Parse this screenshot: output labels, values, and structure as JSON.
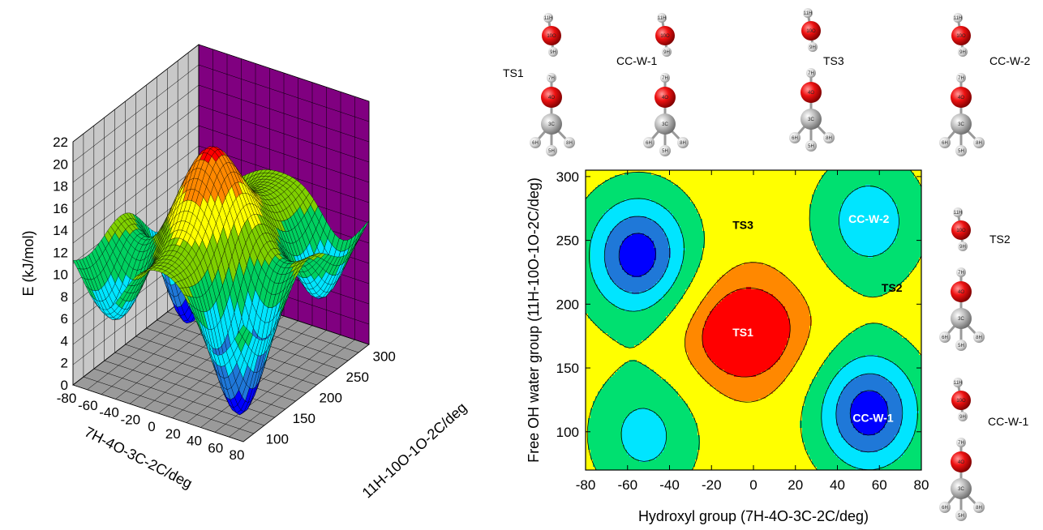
{
  "chart_data": [
    {
      "type": "surface3d",
      "zlabel": "E (kJ/mol)",
      "xlabel": "7H-4O-3C-2C/deg",
      "ylabel": "11H-10O-1O-2C/deg",
      "z_ticks": [
        "0",
        "2",
        "4",
        "6",
        "8",
        "10",
        "12",
        "14",
        "16",
        "18",
        "20",
        "22"
      ],
      "x_ticks": [
        "-80",
        "-60",
        "-40",
        "-20",
        "0",
        "20",
        "40",
        "60",
        "80"
      ],
      "y_ticks": [
        "100",
        "150",
        "200",
        "250",
        "300"
      ],
      "zlim": [
        0,
        22
      ],
      "xlim": [
        -80,
        80
      ],
      "ylim": [
        70,
        305
      ],
      "band_colors": [
        "#0000ff",
        "#1f78d8",
        "#00e5ff",
        "#00d060",
        "#7fd000",
        "#ffff00",
        "#ff8800",
        "#ff0000"
      ],
      "back_wall_colors": [
        "#c8c8c8",
        "#800080"
      ]
    },
    {
      "type": "contour",
      "xlabel": "Hydroxyl group (7H-4O-3C-2C/deg)",
      "ylabel": "Free OH water group (11H-10O-1O-2C/deg)",
      "x_ticks": [
        "-80",
        "-60",
        "-40",
        "-20",
        "0",
        "20",
        "40",
        "60",
        "80"
      ],
      "y_ticks": [
        "100",
        "150",
        "200",
        "250",
        "300"
      ],
      "xlim": [
        -80,
        80
      ],
      "ylim": [
        70,
        305
      ],
      "points": [
        {
          "label": "TS1",
          "x": -5,
          "y": 178
        },
        {
          "label": "TS2",
          "x": 66,
          "y": 213
        },
        {
          "label": "TS3",
          "x": -5,
          "y": 262
        },
        {
          "label": "CC-W-1",
          "x": 57,
          "y": 111
        },
        {
          "label": "CC-W-2",
          "x": 55,
          "y": 267
        }
      ],
      "minima": [
        {
          "x": 55,
          "y": 115,
          "depth": 1.0
        },
        {
          "x": -55,
          "y": 238,
          "depth": 1.0
        },
        {
          "x": 55,
          "y": 265,
          "depth": 0.62
        },
        {
          "x": -52,
          "y": 98,
          "depth": 0.55
        }
      ],
      "level_colors": [
        "#0000ff",
        "#1f78d8",
        "#00e5ff",
        "#00e070",
        "#ffff00",
        "#ff8800",
        "#ff0000"
      ]
    }
  ],
  "structures": [
    {
      "label": "TS1",
      "atoms": [
        "11H",
        "10O",
        "9H",
        "7H",
        "4O",
        "3C",
        "6H",
        "5H",
        "8H"
      ]
    },
    {
      "label": "CC-W-1",
      "atoms": [
        "11H",
        "10O",
        "9H",
        "7H",
        "4O",
        "3C",
        "6H",
        "5H",
        "8H"
      ]
    },
    {
      "label": "TS3",
      "atoms": [
        "11H",
        "10O",
        "9H",
        "7H",
        "4O",
        "3C",
        "6H",
        "5H",
        "8H"
      ]
    },
    {
      "label": "CC-W-2",
      "atoms": [
        "11H",
        "10O",
        "9H",
        "7H",
        "4O",
        "3C",
        "6H",
        "5H",
        "8H"
      ]
    },
    {
      "label": "TS2",
      "atoms": [
        "11H",
        "10O",
        "9H",
        "7H",
        "4O",
        "3C",
        "6H",
        "5H",
        "8H"
      ]
    },
    {
      "label": "CC-W-1",
      "atoms": [
        "11H",
        "10O",
        "9H",
        "7H",
        "4O",
        "3C",
        "6H",
        "5H",
        "8H"
      ]
    }
  ]
}
